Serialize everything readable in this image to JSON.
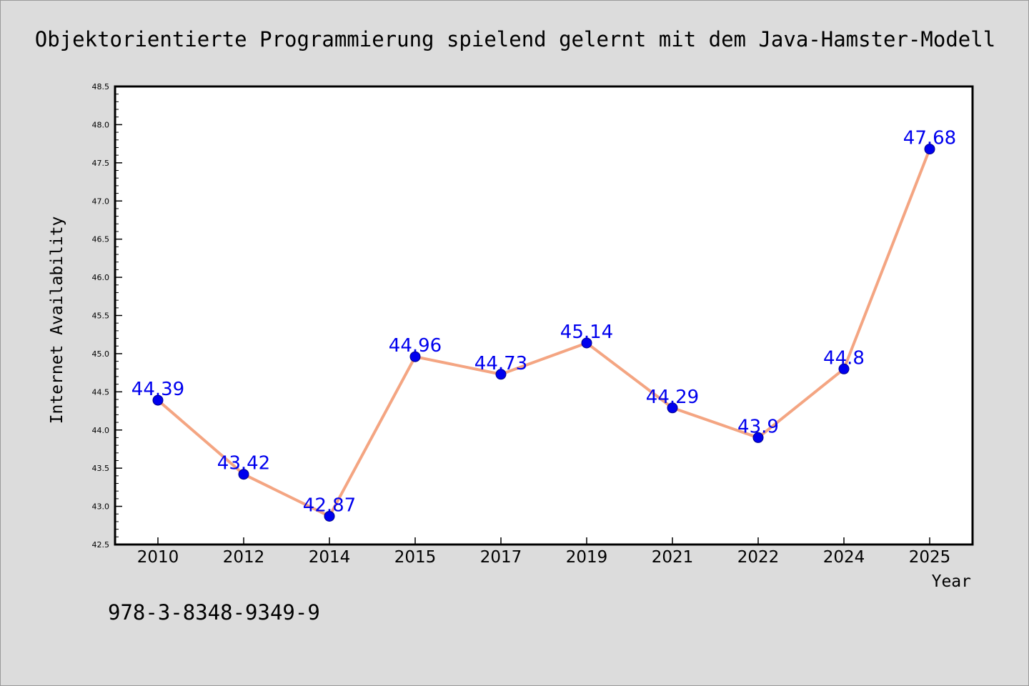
{
  "chart_data": {
    "type": "line",
    "title": "Objektorientierte Programmierung spielend gelernt mit dem Java-Hamster-Modell",
    "xlabel": "Year",
    "ylabel": "Internet Availability",
    "categories": [
      "2010",
      "2012",
      "2014",
      "2015",
      "2017",
      "2019",
      "2021",
      "2022",
      "2024",
      "2025"
    ],
    "series": [
      {
        "name": "",
        "values": [
          44.39,
          43.42,
          42.87,
          44.96,
          44.73,
          45.14,
          44.29,
          43.9,
          44.8,
          47.68
        ],
        "data_labels": [
          "44.39",
          "43.42",
          "42.87",
          "44.96",
          "44.73",
          "45.14",
          "44.29",
          "43.9",
          "44.8",
          "47.68"
        ]
      }
    ],
    "ylim": [
      42.5,
      48.5
    ],
    "yticks": [
      42.5,
      43.0,
      43.5,
      44.0,
      44.5,
      45.0,
      45.5,
      46.0,
      46.5,
      47.0,
      47.5,
      48.0,
      48.5
    ],
    "ytick_labels": [
      "42.5",
      "43.0",
      "43.5",
      "44.0",
      "44.5",
      "45.0",
      "45.5",
      "46.0",
      "46.5",
      "47.0",
      "47.5",
      "48.0",
      "48.5"
    ],
    "grid": false,
    "legend": "none",
    "annotation": "978-3-8348-9349-9",
    "colors": {
      "line": "#f4a582",
      "marker": "#0000ee",
      "data_label": "#0000ee",
      "background": "#dcdcdc",
      "plot_background": "#ffffff"
    }
  }
}
